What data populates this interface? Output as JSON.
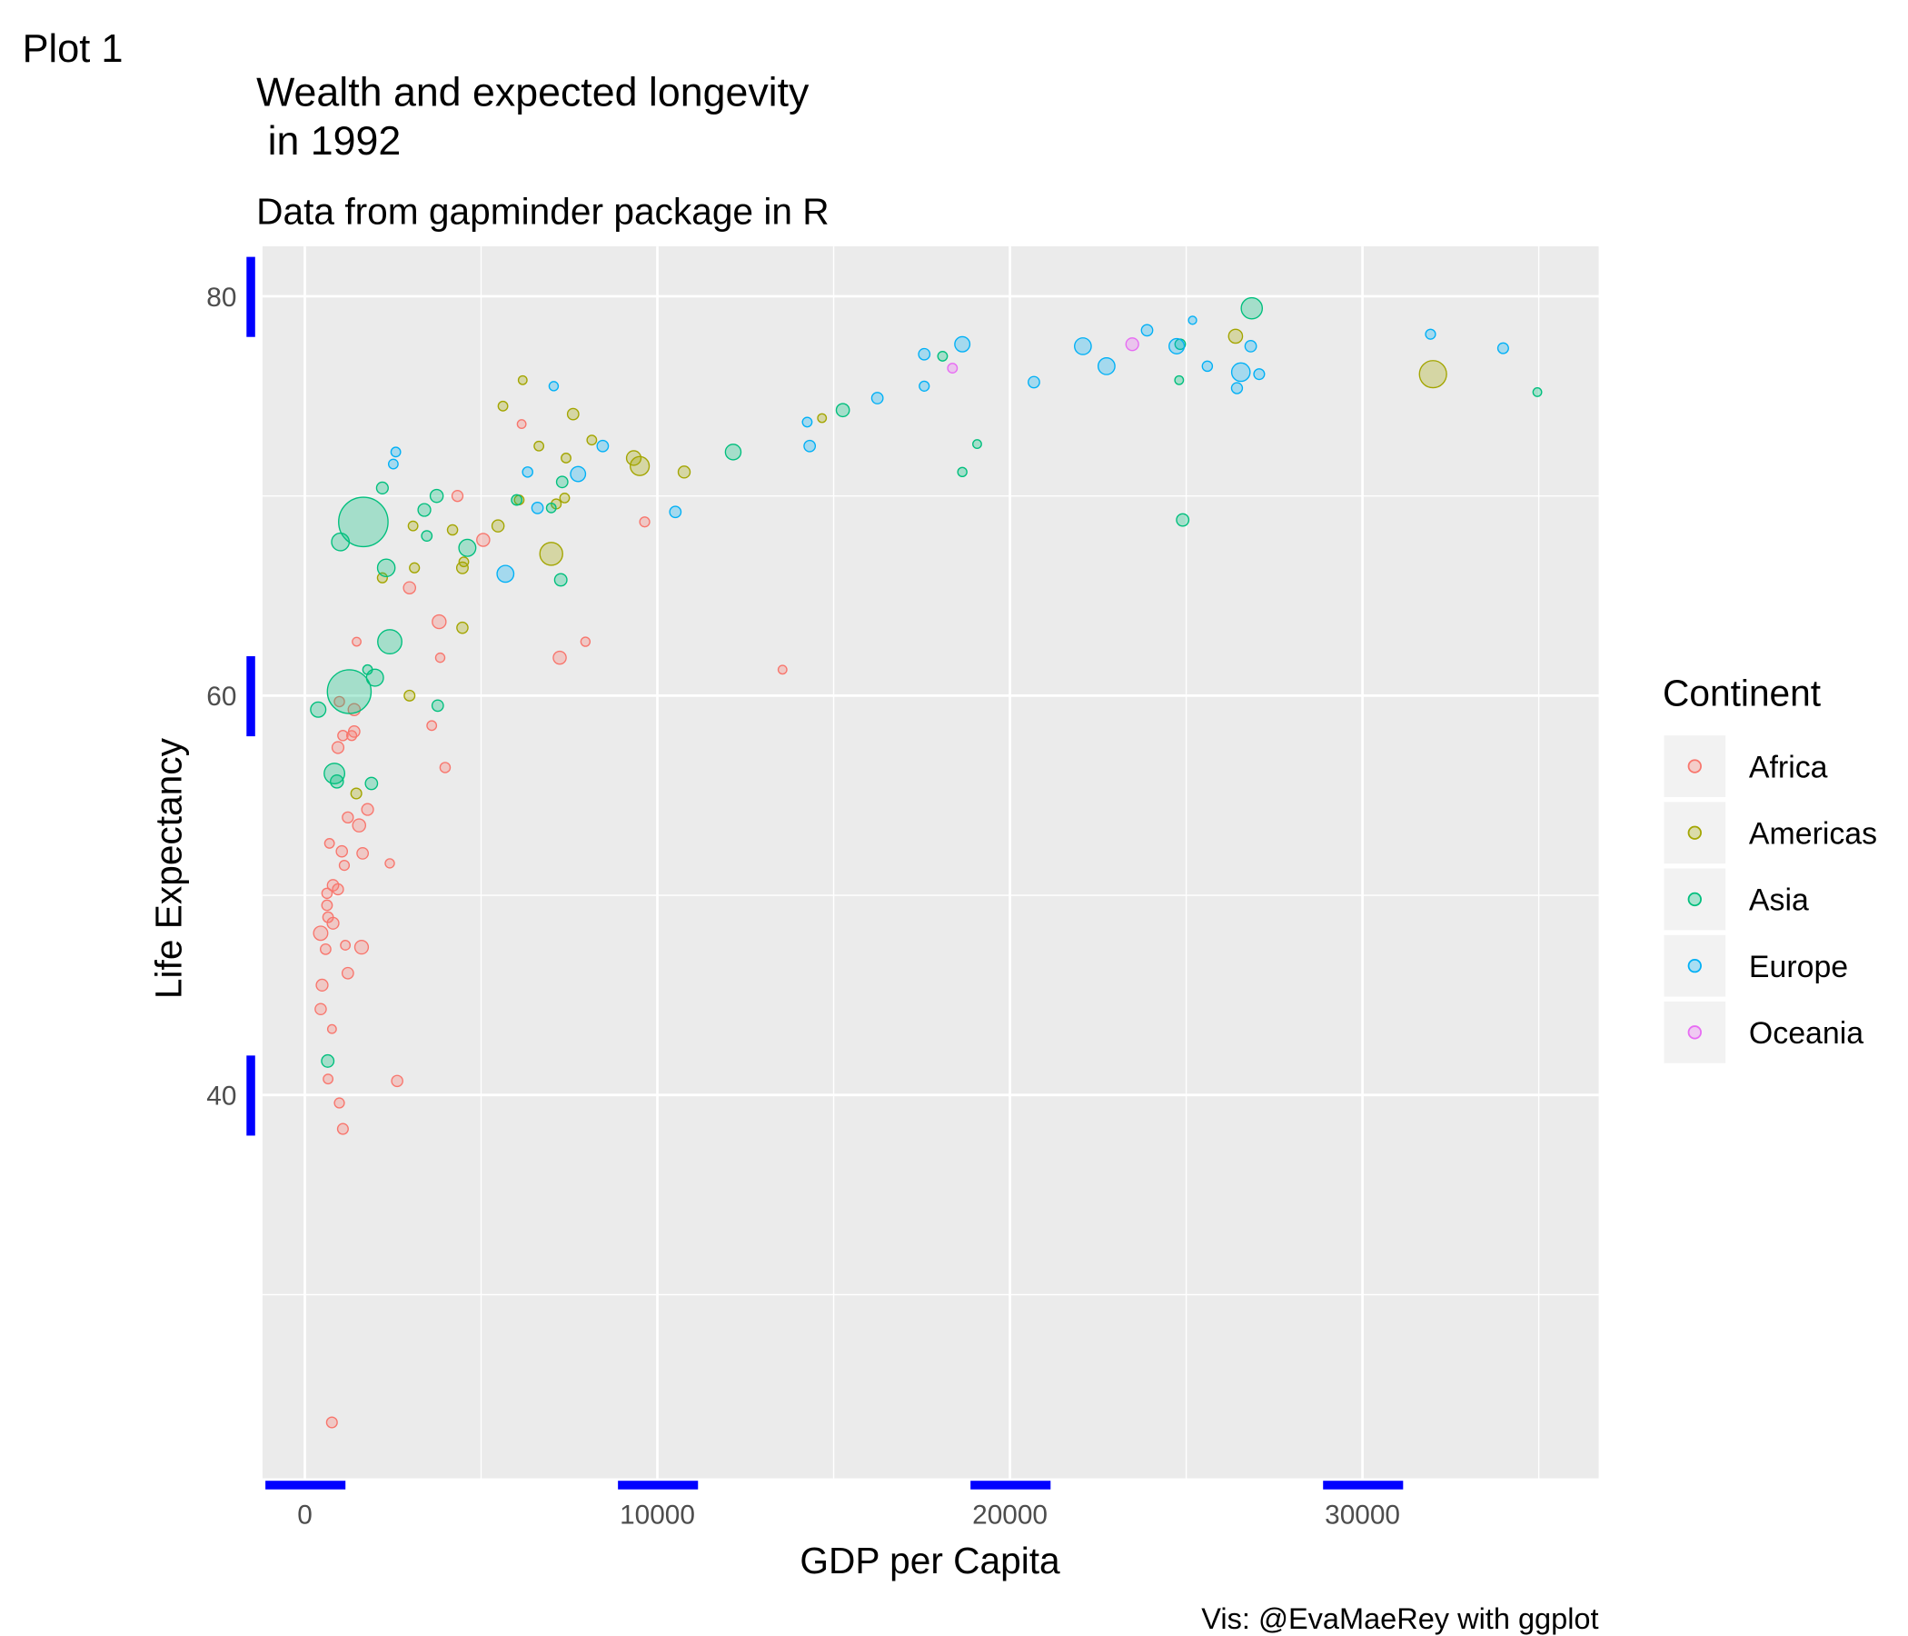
{
  "plot_label": "Plot 1",
  "chart_data": {
    "type": "scatter",
    "title": "Wealth and expected longevity\n in 1992",
    "subtitle": "Data from gapminder package in R",
    "x_label": "GDP per Capita",
    "y_label": "Life Expectancy",
    "caption": "Vis: @EvaMaeRey with ggplot",
    "legend_title": "Continent",
    "legend_position": "right",
    "grid": true,
    "xlim": [
      -1200,
      36700
    ],
    "ylim": [
      20.8,
      82.5
    ],
    "xticks": [
      0,
      10000,
      20000,
      30000
    ],
    "yticks": [
      40,
      60,
      80
    ],
    "x_minor_ticks": [
      5000,
      15000,
      25000,
      35000
    ],
    "y_minor_ticks": [
      30,
      50,
      70
    ],
    "series": [
      {
        "name": "Africa",
        "color": "#F8766D",
        "x": [
          768,
          2620,
          980,
          1080,
          660,
          770,
          450,
          490,
          1220,
          1610,
          590,
          450,
          1150,
          800,
          660,
          630,
          630,
          940,
          800,
          2410,
          1050,
          1640,
          1120,
          700,
          1220,
          1540,
          1780,
          3980,
          940,
          1080,
          1330,
          1400,
          1400,
          980,
          3600,
          3840,
          1470,
          3810,
          2970,
          7230,
          7960,
          13550,
          9640,
          4330,
          5060,
          6150
        ],
        "values": [
          23.6,
          40.7,
          39.6,
          38.3,
          40.8,
          43.3,
          44.3,
          45.5,
          46.1,
          47.4,
          47.3,
          48.1,
          47.5,
          48.6,
          48.9,
          49.5,
          50.1,
          50.3,
          50.5,
          51.6,
          52.2,
          52.1,
          51.5,
          52.6,
          53.9,
          53.5,
          54.3,
          56.4,
          57.4,
          58.0,
          58.0,
          58.2,
          59.3,
          59.7,
          58.5,
          61.9,
          62.7,
          63.7,
          65.4,
          61.9,
          62.7,
          61.3,
          68.7,
          70.0,
          67.8,
          73.6
        ],
        "sizes": [
          7,
          9,
          4,
          7,
          3,
          1,
          9,
          12,
          10,
          25,
          6,
          30,
          3,
          12,
          6,
          6,
          5,
          8,
          10,
          2,
          9,
          10,
          4,
          3,
          8,
          20,
          12,
          5,
          12,
          5,
          4,
          10,
          14,
          5,
          3,
          2,
          1,
          26,
          14,
          20,
          2,
          1,
          4,
          8,
          20,
          1
        ]
      },
      {
        "name": "Americas",
        "color": "#A3A500",
        "x": [
          32000,
          26400,
          1460,
          2200,
          3110,
          2970,
          4470,
          4190,
          3070,
          5480,
          6080,
          6990,
          7130,
          7370,
          7410,
          6640,
          5620,
          6180,
          7610,
          8140,
          9330,
          9500,
          10760,
          14670,
          4470,
          4510
        ],
        "values": [
          76.1,
          78.0,
          55.1,
          65.9,
          66.4,
          60.0,
          66.4,
          68.3,
          68.5,
          68.5,
          69.8,
          67.1,
          69.6,
          69.9,
          71.9,
          72.5,
          74.5,
          75.8,
          74.1,
          72.8,
          71.9,
          71.5,
          71.2,
          73.9,
          63.4,
          66.7
        ],
        "sizes": [
          257,
          28,
          7,
          4,
          4,
          7,
          11,
          5,
          3,
          14,
          3,
          156,
          4,
          3,
          3,
          3,
          3,
          1,
          10,
          3,
          33,
          88,
          13,
          1,
          9,
          3
        ]
      },
      {
        "name": "Asia",
        "color": "#00BF7D",
        "x": [
          1660,
          1260,
          650,
          380,
          840,
          910,
          1890,
          3770,
          1780,
          1990,
          2410,
          1010,
          2310,
          2200,
          3390,
          3460,
          3740,
          4610,
          6010,
          6990,
          7260,
          7300,
          12150,
          15260,
          18090,
          19070,
          18650,
          24900,
          24800,
          24830,
          26860,
          34960
        ],
        "values": [
          68.7,
          60.2,
          41.7,
          59.3,
          56.1,
          55.7,
          55.6,
          59.5,
          61.3,
          60.9,
          62.7,
          67.7,
          66.4,
          70.4,
          69.3,
          68.0,
          70.0,
          67.4,
          69.8,
          69.4,
          65.8,
          70.7,
          72.2,
          74.3,
          77.0,
          72.6,
          71.2,
          68.8,
          75.8,
          77.6,
          79.4,
          75.2
        ],
        "sizes": [
          1164,
          872,
          16,
          40,
          113,
          20,
          15,
          10,
          3,
          60,
          184,
          69,
          67,
          12,
          18,
          6,
          20,
          60,
          6,
          3,
          16,
          10,
          44,
          21,
          3,
          1,
          2,
          16,
          1,
          6,
          124,
          1
        ]
      },
      {
        "name": "Europe",
        "color": "#00B0F6",
        "x": [
          2580,
          2510,
          5690,
          6320,
          6600,
          7750,
          7060,
          8450,
          10510,
          14250,
          14320,
          16240,
          17570,
          17570,
          18650,
          20680,
          22070,
          22740,
          23890,
          24730,
          25180,
          25600,
          26550,
          26440,
          26830,
          27070,
          31930,
          33990
        ],
        "values": [
          72.2,
          71.6,
          66.1,
          71.2,
          69.4,
          71.1,
          75.5,
          72.5,
          69.2,
          73.7,
          72.5,
          74.9,
          75.5,
          77.1,
          77.6,
          75.7,
          77.5,
          76.5,
          78.3,
          77.5,
          78.8,
          76.5,
          76.2,
          75.4,
          77.5,
          76.1,
          78.1,
          77.4
        ],
        "sizes": [
          3,
          3,
          58,
          5,
          10,
          38,
          2,
          10,
          10,
          3,
          10,
          10,
          4,
          10,
          39,
          10,
          57,
          58,
          10,
          40,
          0.3,
          5,
          80,
          8,
          10,
          7,
          4,
          7
        ]
      },
      {
        "name": "Oceania",
        "color": "#E76BF3",
        "x": [
          23470,
          18370
        ],
        "values": [
          77.6,
          76.4
        ],
        "sizes": [
          18,
          3
        ]
      }
    ]
  }
}
